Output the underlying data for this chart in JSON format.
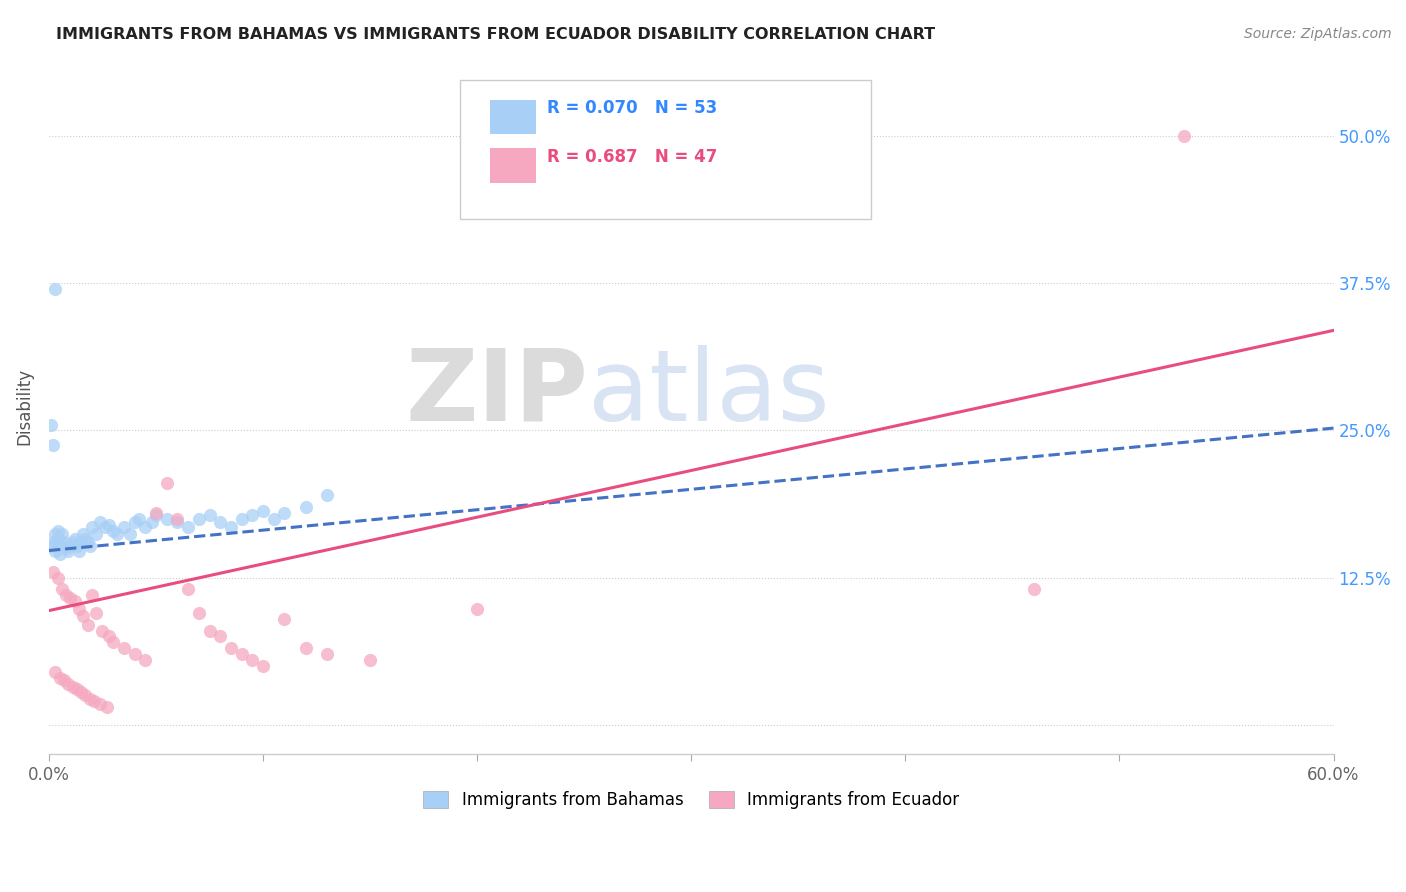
{
  "title": "IMMIGRANTS FROM BAHAMAS VS IMMIGRANTS FROM ECUADOR DISABILITY CORRELATION CHART",
  "source": "Source: ZipAtlas.com",
  "ylabel": "Disability",
  "xlim": [
    0.0,
    0.6
  ],
  "ylim": [
    -0.025,
    0.565
  ],
  "ytick_positions": [
    0.0,
    0.125,
    0.25,
    0.375,
    0.5
  ],
  "ytick_labels": [
    "",
    "12.5%",
    "25.0%",
    "37.5%",
    "50.0%"
  ],
  "xtick_positions": [
    0.0,
    0.1,
    0.2,
    0.3,
    0.4,
    0.5,
    0.6
  ],
  "xtick_labels": [
    "0.0%",
    "",
    "",
    "",
    "",
    "",
    "60.0%"
  ],
  "series1_label": "Immigrants from Bahamas",
  "series1_R": "0.070",
  "series1_N": "53",
  "series1_color": "#a8cff5",
  "series1_line_color": "#4472C4",
  "series2_label": "Immigrants from Ecuador",
  "series2_R": "0.687",
  "series2_N": "47",
  "series2_color": "#f5a8c0",
  "series2_line_color": "#E84D7E",
  "bah_line_x0": 0.0,
  "bah_line_y0": 0.148,
  "bah_line_x1": 0.6,
  "bah_line_y1": 0.252,
  "ecu_line_x0": 0.0,
  "ecu_line_y0": 0.097,
  "ecu_line_x1": 0.6,
  "ecu_line_y1": 0.335,
  "bah_points_x": [
    0.001,
    0.002,
    0.003,
    0.004,
    0.005,
    0.006,
    0.007,
    0.008,
    0.009,
    0.01,
    0.011,
    0.012,
    0.013,
    0.014,
    0.015,
    0.016,
    0.017,
    0.018,
    0.019,
    0.02,
    0.022,
    0.024,
    0.026,
    0.028,
    0.03,
    0.032,
    0.035,
    0.038,
    0.04,
    0.042,
    0.045,
    0.048,
    0.05,
    0.055,
    0.06,
    0.065,
    0.07,
    0.075,
    0.08,
    0.085,
    0.09,
    0.095,
    0.1,
    0.105,
    0.11,
    0.12,
    0.13,
    0.001,
    0.002,
    0.003,
    0.003,
    0.004,
    0.005
  ],
  "bah_points_y": [
    0.152,
    0.155,
    0.148,
    0.158,
    0.145,
    0.162,
    0.155,
    0.15,
    0.148,
    0.152,
    0.155,
    0.158,
    0.152,
    0.148,
    0.155,
    0.162,
    0.158,
    0.155,
    0.152,
    0.168,
    0.162,
    0.172,
    0.168,
    0.17,
    0.165,
    0.162,
    0.168,
    0.162,
    0.172,
    0.175,
    0.168,
    0.172,
    0.178,
    0.175,
    0.172,
    0.168,
    0.175,
    0.178,
    0.172,
    0.168,
    0.175,
    0.178,
    0.182,
    0.175,
    0.18,
    0.185,
    0.195,
    0.255,
    0.238,
    0.37,
    0.162,
    0.165,
    0.155
  ],
  "ecu_points_x": [
    0.002,
    0.004,
    0.006,
    0.008,
    0.01,
    0.012,
    0.014,
    0.016,
    0.018,
    0.02,
    0.022,
    0.025,
    0.028,
    0.03,
    0.035,
    0.04,
    0.045,
    0.05,
    0.003,
    0.005,
    0.007,
    0.009,
    0.011,
    0.013,
    0.015,
    0.017,
    0.019,
    0.021,
    0.024,
    0.027,
    0.055,
    0.06,
    0.065,
    0.07,
    0.075,
    0.08,
    0.085,
    0.09,
    0.095,
    0.1,
    0.11,
    0.12,
    0.13,
    0.15,
    0.2,
    0.46,
    0.53
  ],
  "ecu_points_y": [
    0.13,
    0.125,
    0.115,
    0.11,
    0.108,
    0.105,
    0.098,
    0.092,
    0.085,
    0.11,
    0.095,
    0.08,
    0.075,
    0.07,
    0.065,
    0.06,
    0.055,
    0.18,
    0.045,
    0.04,
    0.038,
    0.035,
    0.032,
    0.03,
    0.028,
    0.025,
    0.022,
    0.02,
    0.018,
    0.015,
    0.205,
    0.175,
    0.115,
    0.095,
    0.08,
    0.075,
    0.065,
    0.06,
    0.055,
    0.05,
    0.09,
    0.065,
    0.06,
    0.055,
    0.098,
    0.115,
    0.5
  ]
}
